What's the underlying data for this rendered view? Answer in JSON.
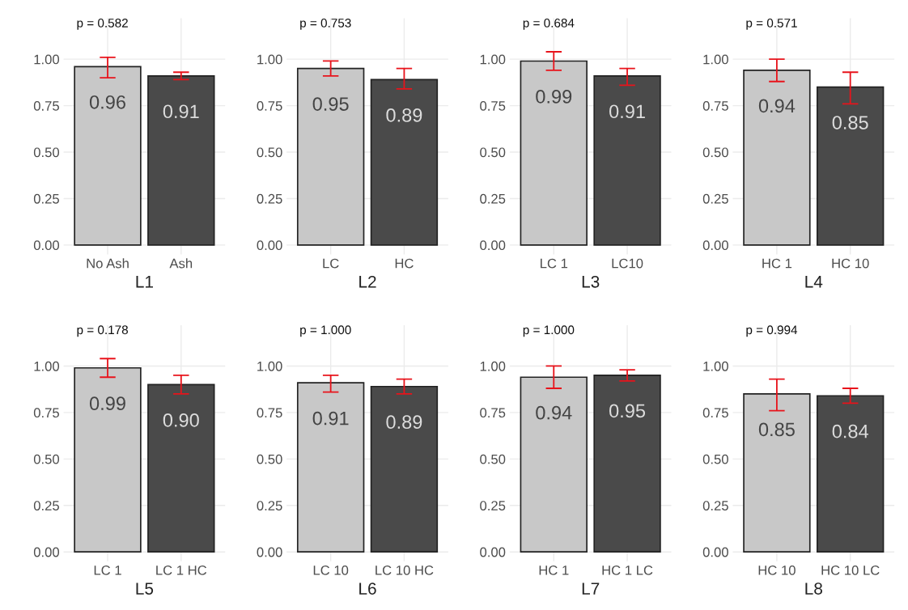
{
  "chart_data": [
    {
      "type": "bar",
      "xlabel": "L1",
      "categories": [
        "No Ash",
        "Ash"
      ],
      "values": [
        0.96,
        0.91
      ],
      "value_labels": [
        "0.96",
        "0.91"
      ],
      "colors": [
        "#c8c8c8",
        "#4a4a4a"
      ],
      "errors": [
        [
          0.9,
          1.01
        ],
        [
          0.89,
          0.93
        ]
      ],
      "annotations": [
        "p = 0.582"
      ],
      "ylim": [
        -0.05,
        1.22
      ],
      "yticks": [
        {
          "value": 0,
          "label": "0.00"
        },
        {
          "value": 0.25,
          "label": "0.25"
        },
        {
          "value": 0.5,
          "label": "0.50"
        },
        {
          "value": 0.75,
          "label": "0.75"
        },
        {
          "value": 1,
          "label": "1.00"
        }
      ],
      "grid": true
    },
    {
      "type": "bar",
      "xlabel": "L2",
      "categories": [
        "LC",
        "HC"
      ],
      "values": [
        0.95,
        0.89
      ],
      "value_labels": [
        "0.95",
        "0.89"
      ],
      "colors": [
        "#c8c8c8",
        "#4a4a4a"
      ],
      "errors": [
        [
          0.91,
          0.99
        ],
        [
          0.84,
          0.95
        ]
      ],
      "annotations": [
        "p = 0.753"
      ],
      "ylim": [
        -0.05,
        1.22
      ],
      "yticks": [
        {
          "value": 0,
          "label": "0.00"
        },
        {
          "value": 0.25,
          "label": "0.25"
        },
        {
          "value": 0.5,
          "label": "0.50"
        },
        {
          "value": 0.75,
          "label": "0.75"
        },
        {
          "value": 1,
          "label": "1.00"
        }
      ],
      "grid": true
    },
    {
      "type": "bar",
      "xlabel": "L3",
      "categories": [
        "LC 1",
        "LC10"
      ],
      "values": [
        0.99,
        0.91
      ],
      "value_labels": [
        "0.99",
        "0.91"
      ],
      "colors": [
        "#c8c8c8",
        "#4a4a4a"
      ],
      "errors": [
        [
          0.94,
          1.04
        ],
        [
          0.86,
          0.95
        ]
      ],
      "annotations": [
        "p = 0.684"
      ],
      "ylim": [
        -0.05,
        1.22
      ],
      "yticks": [
        {
          "value": 0,
          "label": "0.00"
        },
        {
          "value": 0.25,
          "label": "0.25"
        },
        {
          "value": 0.5,
          "label": "0.50"
        },
        {
          "value": 0.75,
          "label": "0.75"
        },
        {
          "value": 1,
          "label": "1.00"
        }
      ],
      "grid": true
    },
    {
      "type": "bar",
      "xlabel": "L4",
      "categories": [
        "HC 1",
        "HC 10"
      ],
      "values": [
        0.94,
        0.85
      ],
      "value_labels": [
        "0.94",
        "0.85"
      ],
      "colors": [
        "#c8c8c8",
        "#4a4a4a"
      ],
      "errors": [
        [
          0.88,
          1.0
        ],
        [
          0.76,
          0.93
        ]
      ],
      "annotations": [
        "p = 0.571"
      ],
      "ylim": [
        -0.05,
        1.22
      ],
      "yticks": [
        {
          "value": 0,
          "label": "0.00"
        },
        {
          "value": 0.25,
          "label": "0.25"
        },
        {
          "value": 0.5,
          "label": "0.50"
        },
        {
          "value": 0.75,
          "label": "0.75"
        },
        {
          "value": 1,
          "label": "1.00"
        }
      ],
      "grid": true
    },
    {
      "type": "bar",
      "xlabel": "L5",
      "categories": [
        "LC 1",
        "LC 1 HC"
      ],
      "values": [
        0.99,
        0.9
      ],
      "value_labels": [
        "0.99",
        "0.90"
      ],
      "colors": [
        "#c8c8c8",
        "#4a4a4a"
      ],
      "errors": [
        [
          0.94,
          1.04
        ],
        [
          0.85,
          0.95
        ]
      ],
      "annotations": [
        "p = 0.178"
      ],
      "ylim": [
        -0.05,
        1.22
      ],
      "yticks": [
        {
          "value": 0,
          "label": "0.00"
        },
        {
          "value": 0.25,
          "label": "0.25"
        },
        {
          "value": 0.5,
          "label": "0.50"
        },
        {
          "value": 0.75,
          "label": "0.75"
        },
        {
          "value": 1,
          "label": "1.00"
        }
      ],
      "grid": true
    },
    {
      "type": "bar",
      "xlabel": "L6",
      "categories": [
        "LC 10",
        "LC 10 HC"
      ],
      "values": [
        0.91,
        0.89
      ],
      "value_labels": [
        "0.91",
        "0.89"
      ],
      "colors": [
        "#c8c8c8",
        "#4a4a4a"
      ],
      "errors": [
        [
          0.86,
          0.95
        ],
        [
          0.85,
          0.93
        ]
      ],
      "annotations": [
        "p = 1.000"
      ],
      "ylim": [
        -0.05,
        1.22
      ],
      "yticks": [
        {
          "value": 0,
          "label": "0.00"
        },
        {
          "value": 0.25,
          "label": "0.25"
        },
        {
          "value": 0.5,
          "label": "0.50"
        },
        {
          "value": 0.75,
          "label": "0.75"
        },
        {
          "value": 1,
          "label": "1.00"
        }
      ],
      "grid": true
    },
    {
      "type": "bar",
      "xlabel": "L7",
      "categories": [
        "HC 1",
        "HC 1 LC"
      ],
      "values": [
        0.94,
        0.95
      ],
      "value_labels": [
        "0.94",
        "0.95"
      ],
      "colors": [
        "#c8c8c8",
        "#4a4a4a"
      ],
      "errors": [
        [
          0.88,
          1.0
        ],
        [
          0.92,
          0.98
        ]
      ],
      "annotations": [
        "p = 1.000"
      ],
      "ylim": [
        -0.05,
        1.22
      ],
      "yticks": [
        {
          "value": 0,
          "label": "0.00"
        },
        {
          "value": 0.25,
          "label": "0.25"
        },
        {
          "value": 0.5,
          "label": "0.50"
        },
        {
          "value": 0.75,
          "label": "0.75"
        },
        {
          "value": 1,
          "label": "1.00"
        }
      ],
      "grid": true
    },
    {
      "type": "bar",
      "xlabel": "L8",
      "categories": [
        "HC 10",
        "HC 10 LC"
      ],
      "values": [
        0.85,
        0.84
      ],
      "value_labels": [
        "0.85",
        "0.84"
      ],
      "colors": [
        "#c8c8c8",
        "#4a4a4a"
      ],
      "errors": [
        [
          0.76,
          0.93
        ],
        [
          0.8,
          0.88
        ]
      ],
      "annotations": [
        "p = 0.994"
      ],
      "ylim": [
        -0.05,
        1.22
      ],
      "yticks": [
        {
          "value": 0,
          "label": "0.00"
        },
        {
          "value": 0.25,
          "label": "0.25"
        },
        {
          "value": 0.5,
          "label": "0.50"
        },
        {
          "value": 0.75,
          "label": "0.75"
        },
        {
          "value": 1,
          "label": "1.00"
        }
      ],
      "grid": true
    }
  ]
}
